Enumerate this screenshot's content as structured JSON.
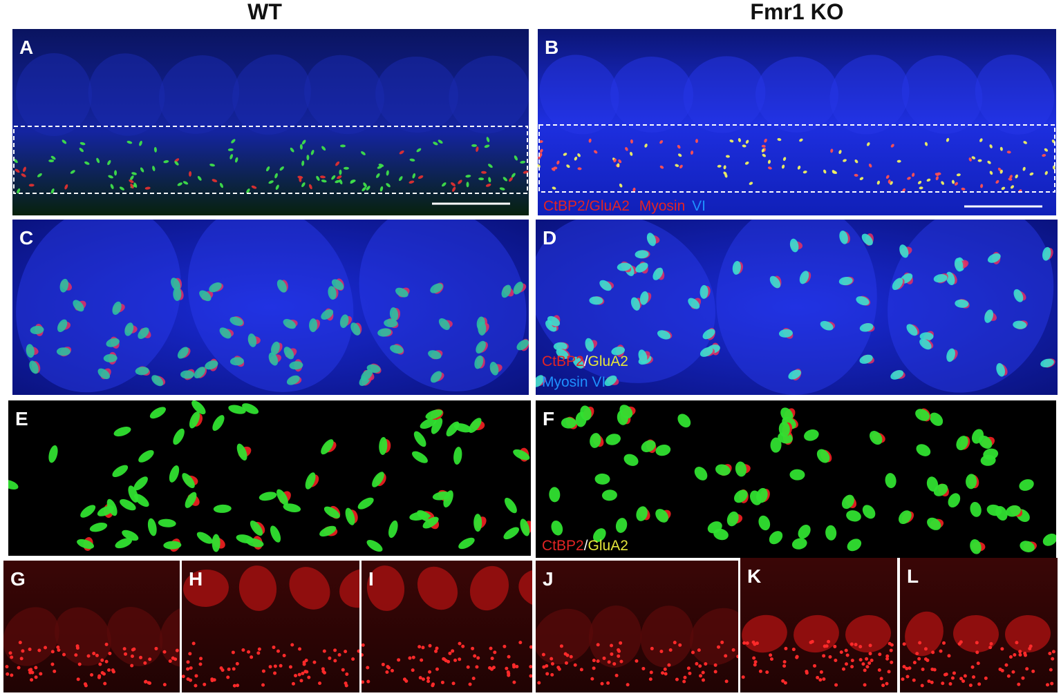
{
  "header": {
    "columns": [
      "WT",
      "Fmr1 KO"
    ]
  },
  "panels": [
    {
      "label": "A"
    },
    {
      "label": "B"
    },
    {
      "label": "C"
    },
    {
      "label": "D"
    },
    {
      "label": "E"
    },
    {
      "label": "F"
    },
    {
      "label": "G"
    },
    {
      "label": "H"
    },
    {
      "label": "I"
    },
    {
      "label": "J"
    },
    {
      "label": "K"
    },
    {
      "label": "L"
    }
  ],
  "legends": {
    "B": [
      "CtBP2/GluA2",
      "Myosin",
      "VI"
    ],
    "D": [
      "CtBP2",
      "/",
      "GluA2",
      "Myosin VI"
    ],
    "F": [
      "CtBP2",
      "/",
      "GluA2"
    ]
  }
}
